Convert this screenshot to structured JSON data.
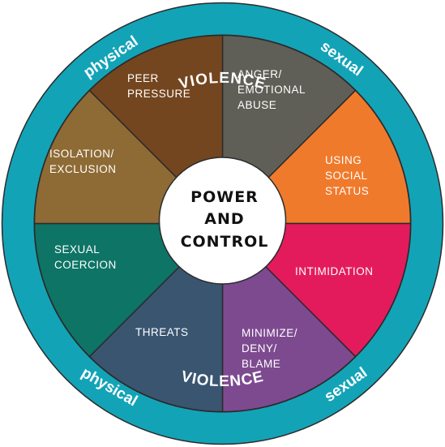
{
  "center": {
    "lines": [
      "POWER",
      "AND",
      "CONTROL"
    ]
  },
  "rim": {
    "top": "VIOLENCE",
    "bottom": "VIOLENCE",
    "upper_left": "physical",
    "lower_left": "physical",
    "upper_right": "sexual",
    "lower_right": "sexual"
  },
  "segments": [
    {
      "name": "anger-emotional-abuse",
      "lines": [
        "ANGER/",
        "EMOTIONAL",
        "ABUSE"
      ],
      "color": "#5f5f58"
    },
    {
      "name": "using-social-status",
      "lines": [
        "USING",
        "SOCIAL",
        "STATUS"
      ],
      "color": "#f07a2c"
    },
    {
      "name": "intimidation",
      "lines": [
        "INTIMIDATION"
      ],
      "color": "#e31b5d"
    },
    {
      "name": "minimize-deny-blame",
      "lines": [
        "MINIMIZE/",
        "DENY/",
        "BLAME"
      ],
      "color": "#7d4a90"
    },
    {
      "name": "threats",
      "lines": [
        "THREATS"
      ],
      "color": "#3a5570"
    },
    {
      "name": "sexual-coercion",
      "lines": [
        "SEXUAL",
        "COERCION"
      ],
      "color": "#0e7466"
    },
    {
      "name": "isolation-exclusion",
      "lines": [
        "ISOLATION/",
        "EXCLUSION"
      ],
      "color": "#8e6b35"
    },
    {
      "name": "peer-pressure",
      "lines": [
        "PEER",
        "PRESSURE"
      ],
      "color": "#74461f"
    }
  ],
  "colors": {
    "rim": "#13a3b7",
    "outline": "#2b2b2b",
    "center_fill": "#ffffff"
  }
}
